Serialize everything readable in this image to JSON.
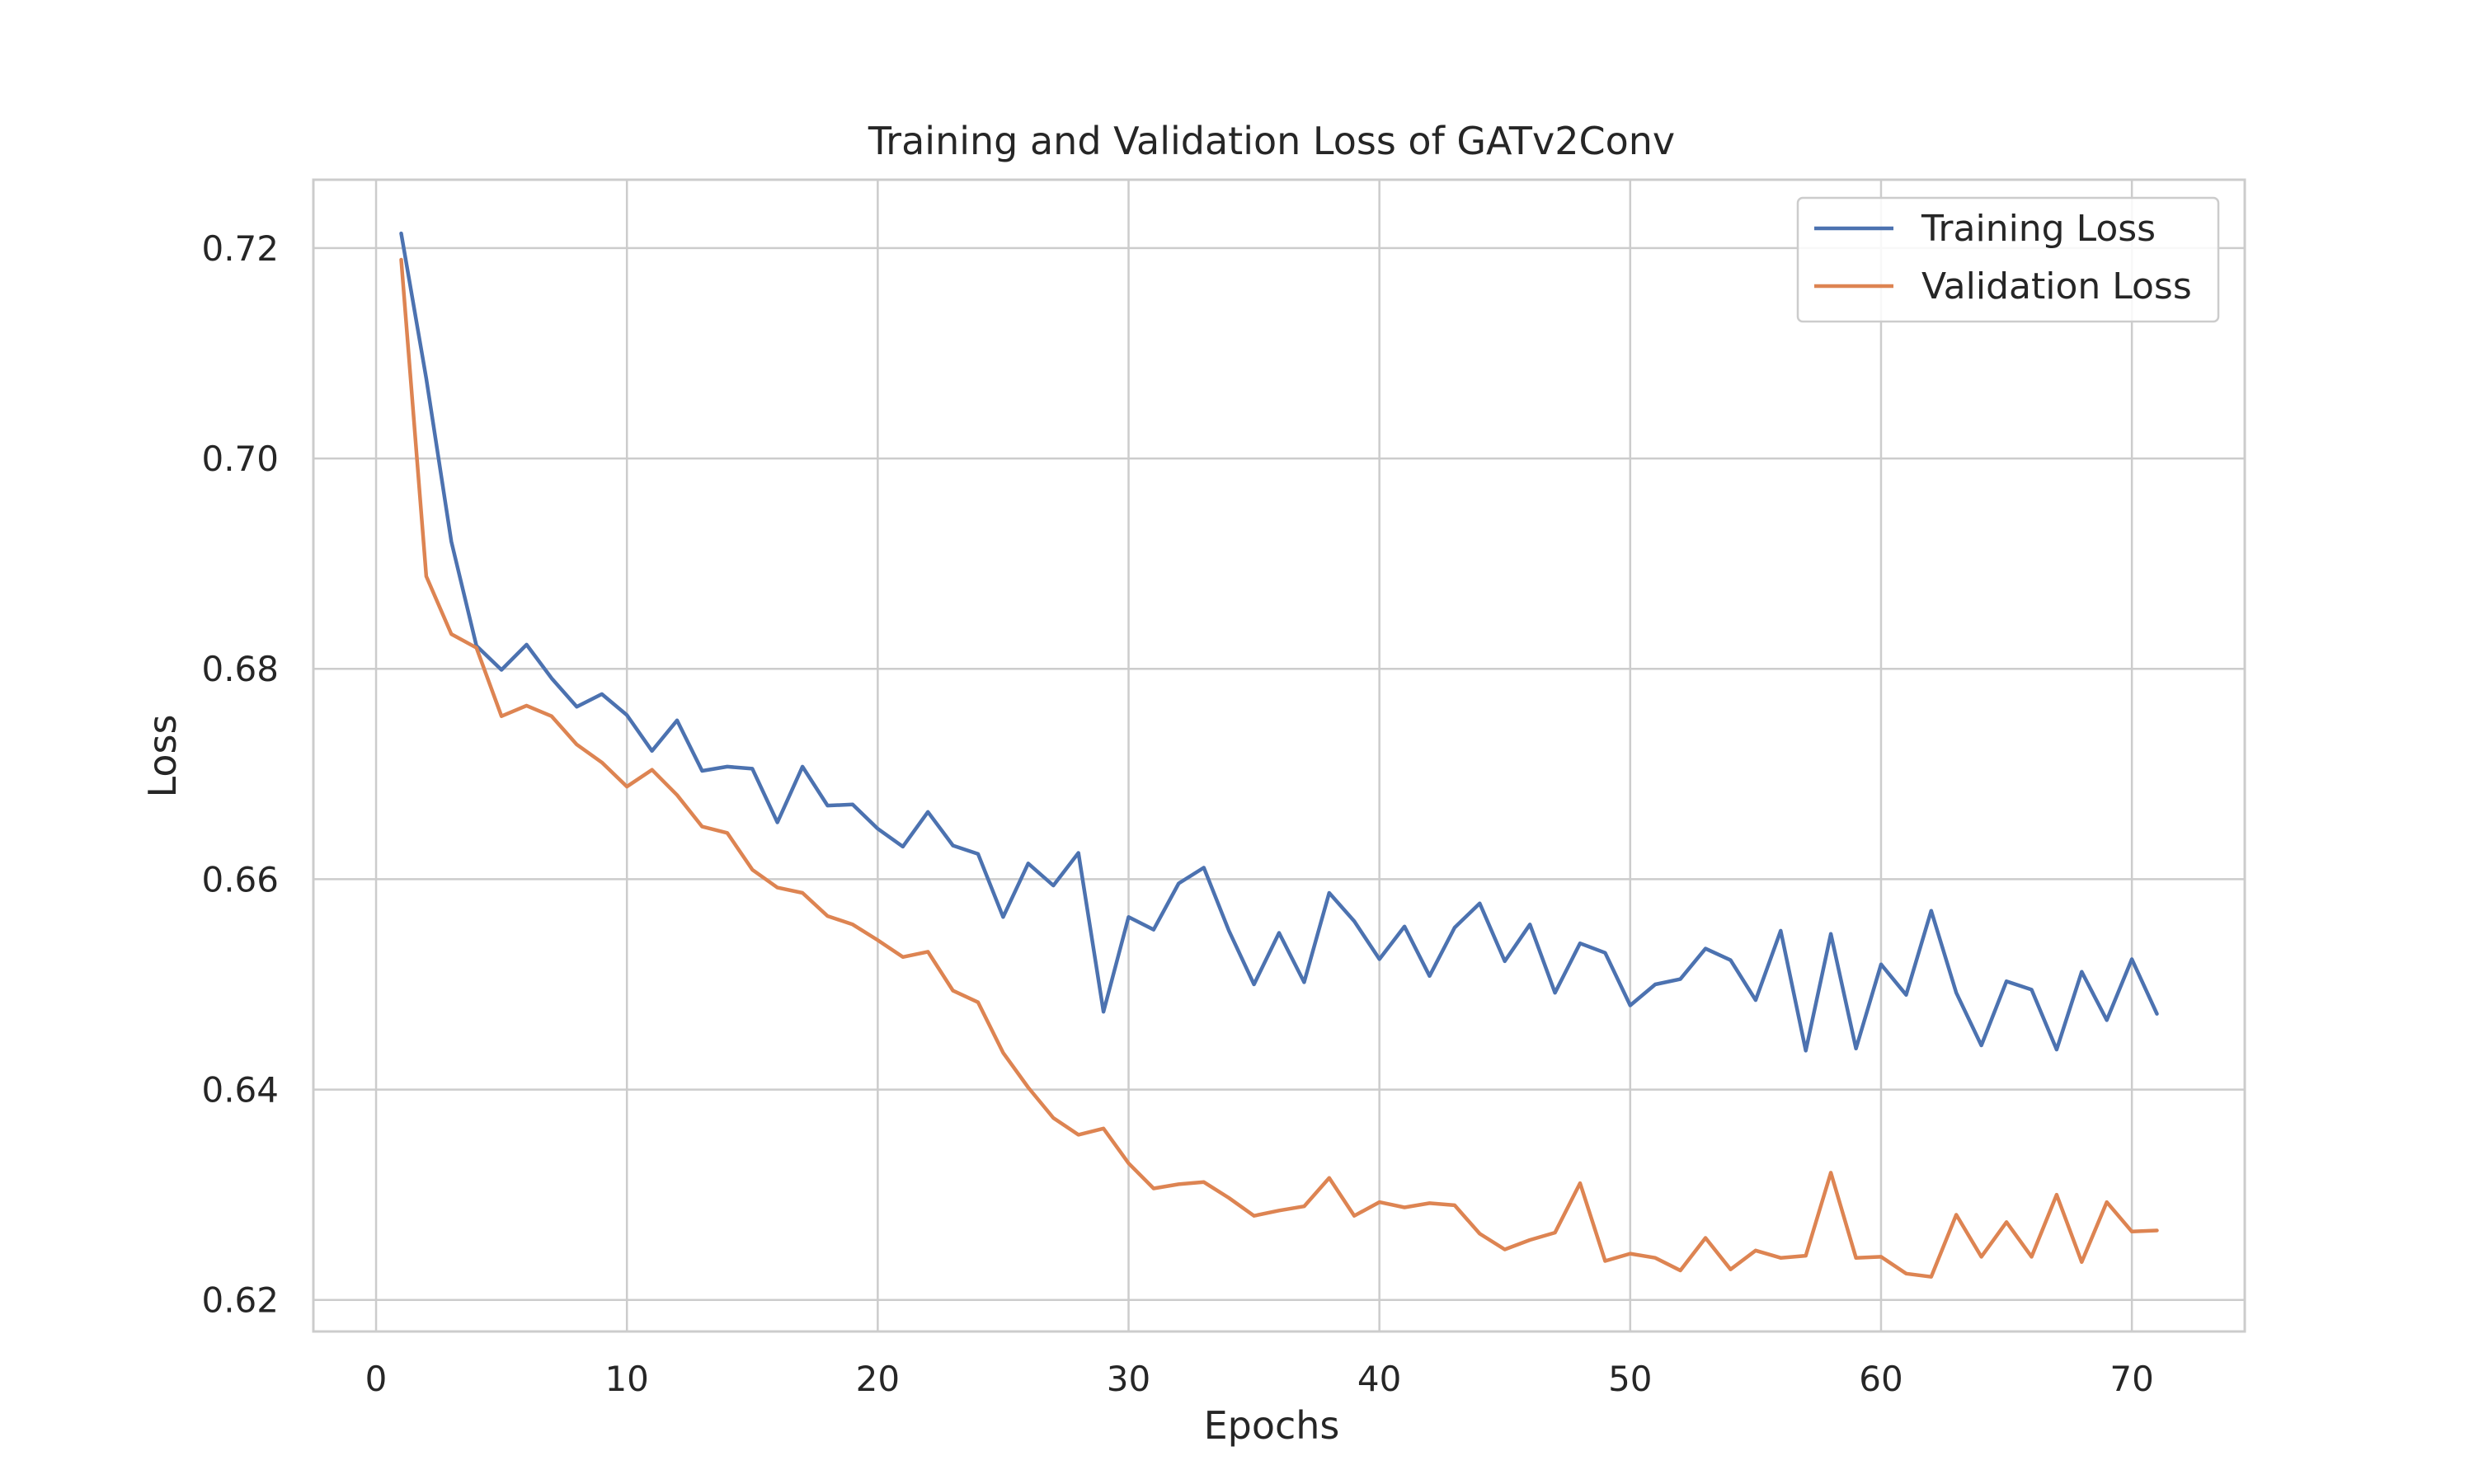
{
  "chart_data": {
    "type": "line",
    "title": "Training and Validation Loss of GATv2Conv",
    "xlabel": "Epochs",
    "ylabel": "Loss",
    "xlim": [
      -2.5,
      74.5
    ],
    "ylim": [
      0.617,
      0.7265
    ],
    "xticks": [
      0,
      10,
      20,
      30,
      40,
      50,
      60,
      70
    ],
    "yticks": [
      0.62,
      0.64,
      0.66,
      0.68,
      0.7,
      0.72
    ],
    "ytick_labels": [
      "0.62",
      "0.64",
      "0.66",
      "0.68",
      "0.70",
      "0.72"
    ],
    "grid": true,
    "legend_position": "upper right",
    "series": [
      {
        "name": "Training Loss",
        "color": "#4c72b0",
        "y": [
          0.7214,
          0.7076,
          0.6921,
          0.6822,
          0.6799,
          0.6823,
          0.6791,
          0.6764,
          0.6776,
          0.6756,
          0.6722,
          0.6751,
          0.6703,
          0.6707,
          0.6705,
          0.6654,
          0.6707,
          0.667,
          0.6671,
          0.6648,
          0.6631,
          0.6664,
          0.6632,
          0.6624,
          0.6564,
          0.6615,
          0.6594,
          0.6625,
          0.6474,
          0.6564,
          0.6552,
          0.6596,
          0.6611,
          0.6551,
          0.65,
          0.6549,
          0.6502,
          0.6587,
          0.656,
          0.6524,
          0.6555,
          0.6508,
          0.6554,
          0.6577,
          0.6522,
          0.6557,
          0.6492,
          0.6539,
          0.653,
          0.648,
          0.65,
          0.6505,
          0.6534,
          0.6523,
          0.6485,
          0.6551,
          0.6437,
          0.6548,
          0.6439,
          0.6519,
          0.649,
          0.657,
          0.6492,
          0.6442,
          0.6503,
          0.6495,
          0.6438,
          0.6512,
          0.6466,
          0.6524,
          0.6472
        ]
      },
      {
        "name": "Validation Loss",
        "color": "#dd8452",
        "y": [
          0.7189,
          0.6888,
          0.6833,
          0.682,
          0.6755,
          0.6765,
          0.6755,
          0.6728,
          0.6711,
          0.6688,
          0.6704,
          0.668,
          0.665,
          0.6644,
          0.6609,
          0.6592,
          0.6587,
          0.6565,
          0.6557,
          0.6542,
          0.6526,
          0.6531,
          0.6494,
          0.6483,
          0.6435,
          0.6402,
          0.6373,
          0.6357,
          0.6363,
          0.633,
          0.6306,
          0.631,
          0.6312,
          0.6297,
          0.628,
          0.6285,
          0.6289,
          0.6316,
          0.628,
          0.6293,
          0.6288,
          0.6292,
          0.629,
          0.6263,
          0.6248,
          0.6257,
          0.6264,
          0.6311,
          0.6237,
          0.6244,
          0.624,
          0.6228,
          0.6259,
          0.6229,
          0.6247,
          0.624,
          0.6242,
          0.6321,
          0.624,
          0.6241,
          0.6225,
          0.6222,
          0.6281,
          0.6241,
          0.6274,
          0.6241,
          0.63,
          0.6236,
          0.6293,
          0.6265,
          0.6266
        ]
      }
    ]
  }
}
